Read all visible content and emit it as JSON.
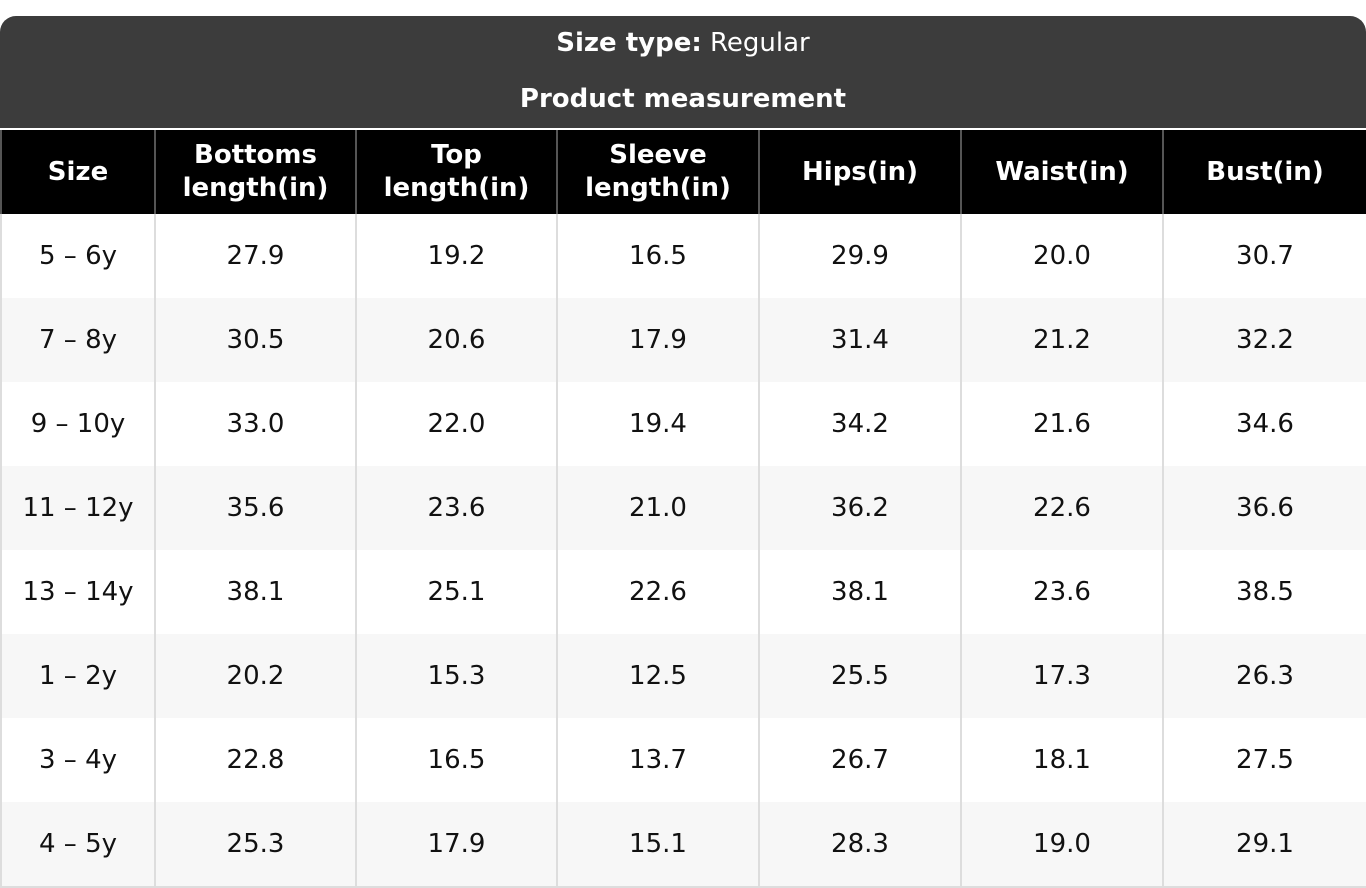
{
  "header": {
    "size_type_label": "Size type:",
    "size_type_value": "Regular",
    "subtitle": "Product measurement"
  },
  "table": {
    "columns": [
      "Size",
      "Bottoms length(in)",
      "Top length(in)",
      "Sleeve length(in)",
      "Hips(in)",
      "Waist(in)",
      "Bust(in)"
    ],
    "rows": [
      [
        "5 – 6y",
        "27.9",
        "19.2",
        "16.5",
        "29.9",
        "20.0",
        "30.7"
      ],
      [
        "7 – 8y",
        "30.5",
        "20.6",
        "17.9",
        "31.4",
        "21.2",
        "32.2"
      ],
      [
        "9 – 10y",
        "33.0",
        "22.0",
        "19.4",
        "34.2",
        "21.6",
        "34.6"
      ],
      [
        "11 – 12y",
        "35.6",
        "23.6",
        "21.0",
        "36.2",
        "22.6",
        "36.6"
      ],
      [
        "13 – 14y",
        "38.1",
        "25.1",
        "22.6",
        "38.1",
        "23.6",
        "38.5"
      ],
      [
        "1 – 2y",
        "20.2",
        "15.3",
        "12.5",
        "25.5",
        "17.3",
        "26.3"
      ],
      [
        "3 – 4y",
        "22.8",
        "16.5",
        "13.7",
        "26.7",
        "18.1",
        "27.5"
      ],
      [
        "4 – 5y",
        "25.3",
        "17.9",
        "15.1",
        "28.3",
        "19.0",
        "29.1"
      ]
    ]
  }
}
